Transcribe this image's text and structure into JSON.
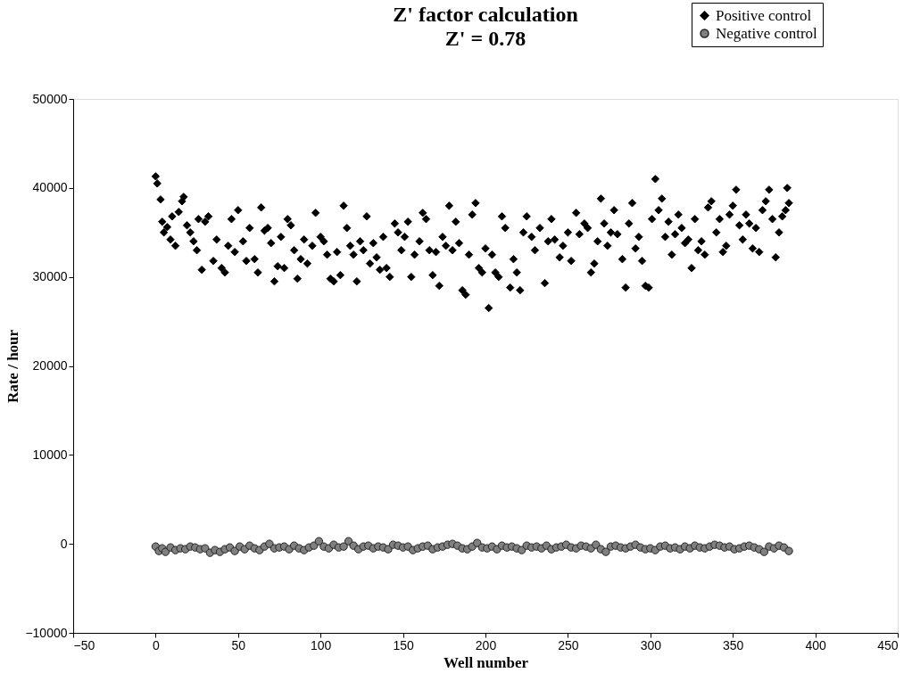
{
  "chart_data": {
    "type": "scatter",
    "title": "Z' factor calculation",
    "subtitle": "Z' = 0.78",
    "xlabel": "Well number",
    "ylabel": "Rate / hour",
    "xlim": [
      -50,
      450
    ],
    "xticks": [
      -50,
      0,
      50,
      100,
      150,
      200,
      250,
      300,
      350,
      400,
      450
    ],
    "ylim": [
      -10000,
      50000
    ],
    "yticks": [
      -10000,
      0,
      10000,
      20000,
      30000,
      40000,
      50000
    ],
    "grid": false,
    "legend": "top right",
    "series": [
      {
        "name": "Positive control",
        "color": "#000000",
        "marker": "diamond",
        "x": [
          0,
          1,
          3,
          4,
          5,
          7,
          9,
          10,
          12,
          14,
          16,
          17,
          19,
          21,
          23,
          25,
          26,
          28,
          30,
          32,
          35,
          37,
          40,
          42,
          44,
          46,
          48,
          50,
          53,
          55,
          57,
          60,
          62,
          64,
          66,
          68,
          70,
          72,
          74,
          76,
          78,
          80,
          82,
          84,
          86,
          88,
          90,
          92,
          95,
          97,
          100,
          102,
          104,
          106,
          108,
          110,
          112,
          114,
          116,
          118,
          120,
          122,
          124,
          126,
          128,
          130,
          132,
          134,
          136,
          138,
          140,
          142,
          145,
          147,
          149,
          151,
          153,
          155,
          157,
          160,
          162,
          164,
          166,
          168,
          170,
          172,
          174,
          176,
          178,
          180,
          182,
          184,
          186,
          188,
          190,
          192,
          194,
          196,
          198,
          200,
          202,
          204,
          206,
          208,
          210,
          212,
          215,
          217,
          219,
          221,
          223,
          225,
          228,
          230,
          233,
          236,
          238,
          240,
          242,
          245,
          247,
          250,
          252,
          255,
          257,
          260,
          262,
          264,
          266,
          268,
          270,
          272,
          274,
          276,
          278,
          280,
          283,
          285,
          287,
          289,
          291,
          293,
          295,
          297,
          299,
          301,
          303,
          305,
          307,
          309,
          311,
          313,
          315,
          317,
          319,
          321,
          323,
          325,
          327,
          329,
          331,
          333,
          335,
          337,
          340,
          342,
          344,
          346,
          348,
          350,
          352,
          354,
          356,
          358,
          360,
          362,
          364,
          366,
          368,
          370,
          372,
          374,
          376,
          378,
          380,
          382,
          383,
          384
        ],
        "values": [
          41300,
          40500,
          38700,
          36200,
          35000,
          35600,
          34200,
          36800,
          33500,
          37300,
          38500,
          39000,
          35800,
          35000,
          34000,
          33000,
          36500,
          30800,
          36200,
          36800,
          31800,
          34200,
          31000,
          30500,
          33500,
          36500,
          32800,
          37500,
          34000,
          31800,
          35500,
          32000,
          30500,
          37800,
          35200,
          35500,
          33800,
          29500,
          31200,
          34500,
          31000,
          36500,
          35800,
          33000,
          29800,
          32000,
          34200,
          31500,
          33500,
          37200,
          34500,
          34000,
          32500,
          29800,
          29500,
          32800,
          30200,
          38000,
          35500,
          33500,
          32500,
          29500,
          34000,
          33000,
          36800,
          31500,
          33800,
          32200,
          30800,
          34500,
          31000,
          30000,
          36000,
          35000,
          33000,
          34500,
          36200,
          30000,
          32500,
          34000,
          37200,
          36500,
          33000,
          30200,
          32800,
          29000,
          34500,
          33500,
          38000,
          33000,
          36200,
          33800,
          28500,
          28000,
          32500,
          37000,
          38300,
          31000,
          30500,
          33200,
          26500,
          32500,
          30500,
          30000,
          36800,
          35500,
          28800,
          32000,
          30500,
          28500,
          35000,
          36800,
          34500,
          33000,
          35500,
          29300,
          34000,
          36500,
          34200,
          32200,
          33500,
          35000,
          31800,
          37200,
          34800,
          36000,
          35500,
          30500,
          31500,
          34000,
          38800,
          36000,
          33500,
          35000,
          37500,
          34800,
          32000,
          28800,
          36000,
          38300,
          33200,
          34500,
          31800,
          29000,
          28800,
          36500,
          41000,
          37500,
          38800,
          34500,
          36200,
          32500,
          34800,
          37000,
          35500,
          33800,
          34200,
          31000,
          36500,
          33000,
          34000,
          32500,
          37800,
          38500,
          35000,
          36500,
          32800,
          33500,
          37000,
          38000,
          39800,
          35800,
          34200,
          37000,
          36000,
          33200,
          35500,
          32800,
          37500,
          38500,
          39800,
          36500,
          32200,
          35000,
          36800,
          37500,
          40000,
          38300
        ]
      },
      {
        "name": "Negative control",
        "color": "#808080",
        "marker": "circle",
        "x": [
          0,
          2,
          4,
          6,
          9,
          12,
          15,
          18,
          21,
          24,
          27,
          30,
          33,
          36,
          39,
          42,
          45,
          48,
          51,
          54,
          57,
          60,
          63,
          66,
          69,
          72,
          75,
          78,
          81,
          84,
          87,
          90,
          93,
          96,
          99,
          102,
          105,
          108,
          111,
          114,
          117,
          120,
          123,
          126,
          129,
          132,
          135,
          138,
          141,
          144,
          147,
          150,
          153,
          156,
          159,
          162,
          165,
          168,
          171,
          174,
          177,
          180,
          183,
          186,
          189,
          192,
          195,
          198,
          201,
          204,
          207,
          210,
          213,
          216,
          219,
          222,
          225,
          228,
          231,
          234,
          237,
          240,
          243,
          246,
          249,
          252,
          255,
          258,
          261,
          264,
          267,
          270,
          273,
          276,
          279,
          282,
          285,
          288,
          291,
          294,
          297,
          300,
          303,
          306,
          309,
          312,
          315,
          318,
          321,
          324,
          327,
          330,
          333,
          336,
          339,
          342,
          345,
          348,
          351,
          354,
          357,
          360,
          363,
          366,
          369,
          372,
          375,
          378,
          381,
          384
        ],
        "values": [
          -300,
          -800,
          -500,
          -900,
          -400,
          -700,
          -500,
          -600,
          -300,
          -400,
          -600,
          -500,
          -1000,
          -700,
          -900,
          -600,
          -400,
          -800,
          -300,
          -600,
          -200,
          -500,
          -700,
          -300,
          0,
          -500,
          -400,
          -300,
          -600,
          -200,
          -500,
          -700,
          -400,
          -200,
          300,
          -300,
          -500,
          -100,
          -400,
          -300,
          300,
          -200,
          -600,
          -300,
          -200,
          -500,
          -300,
          -400,
          -600,
          -100,
          -200,
          -400,
          -300,
          -700,
          -500,
          -300,
          -200,
          -600,
          -400,
          -300,
          -100,
          0,
          -200,
          -500,
          -600,
          -300,
          100,
          -400,
          -500,
          -300,
          -600,
          -200,
          -400,
          -300,
          -500,
          -700,
          -200,
          -400,
          -300,
          -500,
          -200,
          -600,
          -400,
          -300,
          -100,
          -400,
          -500,
          -200,
          -300,
          -500,
          -100,
          -600,
          -900,
          -300,
          -200,
          -400,
          -500,
          -300,
          -100,
          -400,
          -600,
          -500,
          -700,
          -300,
          -200,
          -500,
          -400,
          -600,
          -300,
          -500,
          -200,
          -400,
          -500,
          -300,
          -100,
          -200,
          -400,
          -300,
          -600,
          -500,
          -300,
          -200,
          -400,
          -600,
          -900,
          -300,
          -500,
          -200,
          -400,
          -800
        ]
      }
    ]
  }
}
